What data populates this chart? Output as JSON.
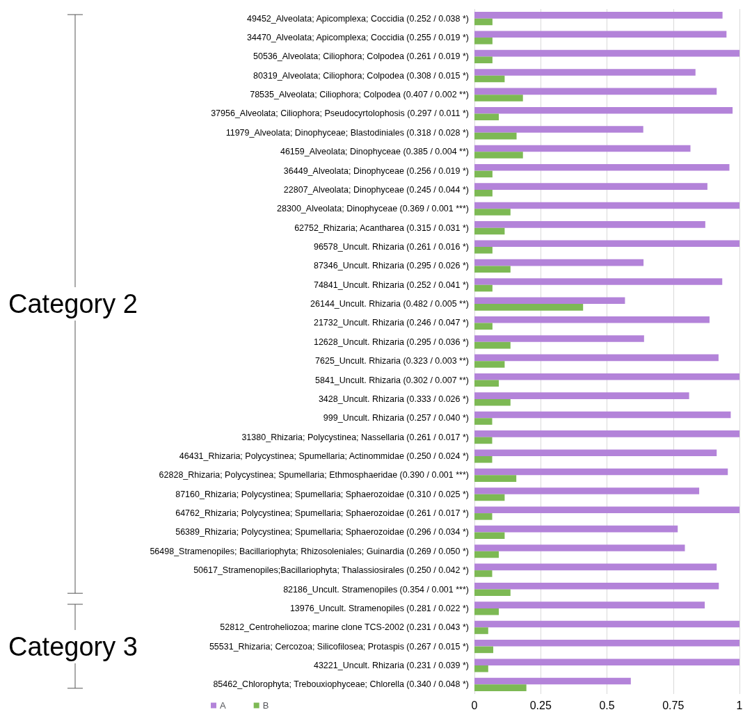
{
  "chart_data": {
    "type": "bar",
    "orientation": "horizontal",
    "categories": [
      "49452_Alveolata; Apicomplexa; Coccidia (0.252 / 0.038 *)",
      "34470_Alveolata; Apicomplexa; Coccidia (0.255 / 0.019 *)",
      "50536_Alveolata; Ciliophora; Colpodea (0.261 / 0.019 *)",
      "80319_Alveolata; Ciliophora; Colpodea (0.308 / 0.015 *)",
      "78535_Alveolata; Ciliophora; Colpodea (0.407 / 0.002 **)",
      "37956_Alveolata; Ciliophora; Pseudocyrtolophosis (0.297 / 0.011 *)",
      "11979_Alveolata; Dinophyceae; Blastodiniales (0.318 / 0.028 *)",
      "46159_Alveolata; Dinophyceae (0.385 / 0.004 **)",
      "36449_Alveolata; Dinophyceae (0.256 / 0.019 *)",
      "22807_Alveolata; Dinophyceae (0.245 / 0.044 *)",
      "28300_Alveolata; Dinophyceae (0.369 / 0.001 ***)",
      "62752_Rhizaria; Acantharea (0.315 / 0.031 *)",
      "96578_Uncult. Rhizaria (0.261 / 0.016 *)",
      "87346_Uncult. Rhizaria (0.295 / 0.026 *)",
      "74841_Uncult. Rhizaria (0.252 / 0.041 *)",
      "26144_Uncult. Rhizaria (0.482 / 0.005 **)",
      "21732_Uncult. Rhizaria (0.246 / 0.047 *)",
      "12628_Uncult. Rhizaria (0.295 / 0.036 *)",
      "7625_Uncult. Rhizaria (0.323 / 0.003 **)",
      "5841_Uncult. Rhizaria (0.302 / 0.007 **)",
      "3428_Uncult. Rhizaria (0.333 / 0.026 *)",
      "999_Uncult. Rhizaria (0.257 / 0.040 *)",
      "31380_Rhizaria; Polycystinea; Nassellaria (0.261 / 0.017 *)",
      "46431_Rhizaria; Polycystinea; Spumellaria; Actinommidae (0.250 / 0.024 *)",
      "62828_Rhizaria; Polycystinea; Spumellaria; Ethmosphaeridae (0.390 / 0.001 ***)",
      "87160_Rhizaria; Polycystinea; Spumellaria; Sphaerozoidae (0.310 / 0.025 *)",
      "64762_Rhizaria; Polycystinea; Spumellaria; Sphaerozoidae (0.261 / 0.017 *)",
      "56389_Rhizaria; Polycystinea; Spumellaria; Sphaerozoidae (0.296 / 0.034 *)",
      "56498_Stramenopiles; Bacillariophyta; Rhizosoleniales; Guinardia (0.269 / 0.050 *)",
      "50617_Stramenopiles;Bacillariophyta; Thalassiosirales (0.250 / 0.042 *)",
      "82186_Uncult. Stramenopiles (0.354 / 0.001 ***)",
      "13976_Uncult. Stramenopiles (0.281 / 0.022 *)",
      "52812_Centroheliozoa; marine clone TCS-2002 (0.231 / 0.043 *)",
      "55531_Rhizaria; Cercozoa; Silicofilosea; Protaspis (0.267 / 0.015 *)",
      "43221_Uncult. Rhizaria (0.231 / 0.039 *)",
      "85462_Chlorophyta; Trebouxiophyceae; Chlorella (0.340 / 0.048 *)"
    ],
    "series": [
      {
        "name": "A",
        "color": "#b383d9",
        "values": [
          0.936,
          0.951,
          1.0,
          0.834,
          0.914,
          0.974,
          0.637,
          0.815,
          0.962,
          0.879,
          1.0,
          0.871,
          1.0,
          0.638,
          0.935,
          0.568,
          0.887,
          0.64,
          0.921,
          1.0,
          0.81,
          0.967,
          1.0,
          0.914,
          0.956,
          0.848,
          1.0,
          0.767,
          0.794,
          0.914,
          0.922,
          0.869,
          1.0,
          1.0,
          1.0,
          0.59
        ]
      },
      {
        "name": "B",
        "color": "#7db954",
        "values": [
          0.068,
          0.068,
          0.068,
          0.114,
          0.183,
          0.092,
          0.159,
          0.183,
          0.068,
          0.068,
          0.136,
          0.114,
          0.068,
          0.136,
          0.068,
          0.41,
          0.068,
          0.136,
          0.114,
          0.092,
          0.136,
          0.067,
          0.067,
          0.067,
          0.158,
          0.114,
          0.067,
          0.114,
          0.092,
          0.067,
          0.136,
          0.092,
          0.052,
          0.071,
          0.052,
          0.196
        ]
      }
    ],
    "xlim": [
      0,
      1
    ],
    "xticks": [
      0,
      0.25,
      0.5,
      0.75,
      1
    ],
    "grid": "x",
    "legend": "bottom left",
    "annotations": [
      "Category 2",
      "Category 3"
    ]
  }
}
